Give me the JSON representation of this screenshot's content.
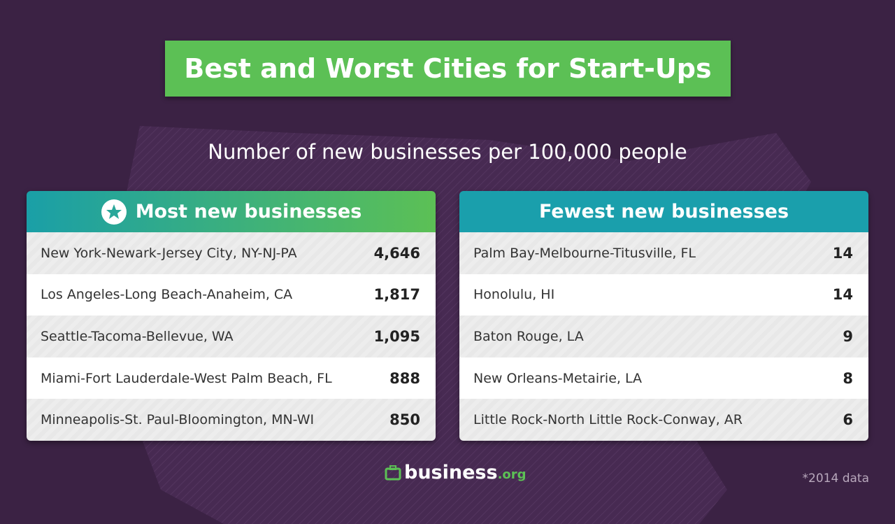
{
  "title": "Best and Worst Cities for Start-Ups",
  "subtitle": "Number of new businesses per 100,000 people",
  "tables": [
    {
      "header": "Most new businesses",
      "rows": [
        [
          "New York-Newark-Jersey City, NY-NJ-PA",
          "4,646"
        ],
        [
          "Los Angeles-Long Beach-Anaheim, CA",
          "1,817"
        ],
        [
          "Seattle-Tacoma-Bellevue, WA",
          "1,095"
        ],
        [
          "Miami-Fort Lauderdale-West Palm Beach, FL",
          "888"
        ],
        [
          "Minneapolis-St. Paul-Bloomington, MN-WI",
          "850"
        ]
      ]
    },
    {
      "header": "Fewest new businesses",
      "rows": [
        [
          "Palm Bay-Melbourne-Titusville, FL",
          "14"
        ],
        [
          "Honolulu, HI",
          "14"
        ],
        [
          "Baton Rouge, LA",
          "9"
        ],
        [
          "New Orleans-Metairie, LA",
          "8"
        ],
        [
          "Little Rock-North Little Rock-Conway, AR",
          "6"
        ]
      ]
    }
  ],
  "logo": {
    "name": "business",
    "suffix": ".org"
  },
  "footnote": "*2014 data"
}
